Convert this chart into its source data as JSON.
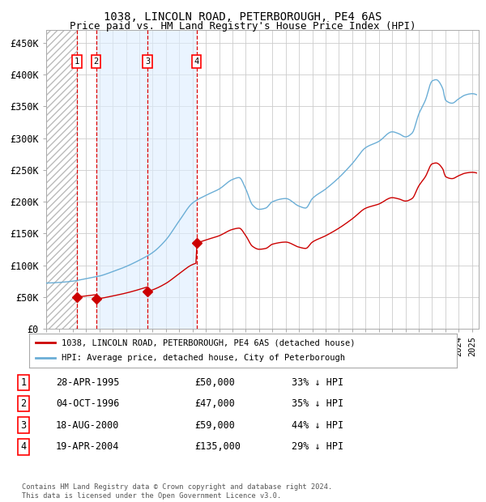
{
  "title1": "1038, LINCOLN ROAD, PETERBOROUGH, PE4 6AS",
  "title2": "Price paid vs. HM Land Registry's House Price Index (HPI)",
  "ylim": [
    0,
    470000
  ],
  "yticks": [
    0,
    50000,
    100000,
    150000,
    200000,
    250000,
    300000,
    350000,
    400000,
    450000
  ],
  "ytick_labels": [
    "£0",
    "£50K",
    "£100K",
    "£150K",
    "£200K",
    "£250K",
    "£300K",
    "£350K",
    "£400K",
    "£450K"
  ],
  "xlim_start": 1993.0,
  "xlim_end": 2025.5,
  "sale_dates": [
    1995.32,
    1996.75,
    2000.62,
    2004.3
  ],
  "sale_prices": [
    50000,
    47000,
    59000,
    135000
  ],
  "sale_labels": [
    "1",
    "2",
    "3",
    "4"
  ],
  "hpi_color": "#6baed6",
  "price_color": "#cc0000",
  "shade_color": "#ddeeff",
  "vline_color": "#dd0000",
  "background_color": "#ffffff",
  "grid_color": "#cccccc",
  "legend_label_price": "1038, LINCOLN ROAD, PETERBOROUGH, PE4 6AS (detached house)",
  "legend_label_hpi": "HPI: Average price, detached house, City of Peterborough",
  "table_rows": [
    [
      "1",
      "28-APR-1995",
      "£50,000",
      "33% ↓ HPI"
    ],
    [
      "2",
      "04-OCT-1996",
      "£47,000",
      "35% ↓ HPI"
    ],
    [
      "3",
      "18-AUG-2000",
      "£59,000",
      "44% ↓ HPI"
    ],
    [
      "4",
      "19-APR-2004",
      "£135,000",
      "29% ↓ HPI"
    ]
  ],
  "footnote": "Contains HM Land Registry data © Crown copyright and database right 2024.\nThis data is licensed under the Open Government Licence v3.0.",
  "title_fontsize": 10,
  "subtitle_fontsize": 9,
  "hpi_key_years": [
    1993,
    1994,
    1995,
    1996,
    1997,
    1998,
    1999,
    2000,
    2001,
    2002,
    2003,
    2004,
    2005,
    2006,
    2007,
    2007.5,
    2008,
    2008.5,
    2009,
    2009.5,
    2010,
    2011,
    2012,
    2012.5,
    2013,
    2014,
    2015,
    2016,
    2017,
    2018,
    2019,
    2019.5,
    2020,
    2020.5,
    2021,
    2021.5,
    2022,
    2022.3,
    2022.8,
    2023,
    2023.5,
    2024,
    2024.5,
    2025
  ],
  "hpi_key_vals": [
    72000,
    73000,
    75000,
    79000,
    83000,
    90000,
    98000,
    108000,
    120000,
    140000,
    170000,
    198000,
    210000,
    220000,
    235000,
    238000,
    220000,
    195000,
    188000,
    190000,
    200000,
    205000,
    193000,
    190000,
    205000,
    220000,
    238000,
    260000,
    285000,
    295000,
    310000,
    307000,
    302000,
    308000,
    338000,
    360000,
    390000,
    392000,
    378000,
    360000,
    355000,
    362000,
    368000,
    370000
  ]
}
